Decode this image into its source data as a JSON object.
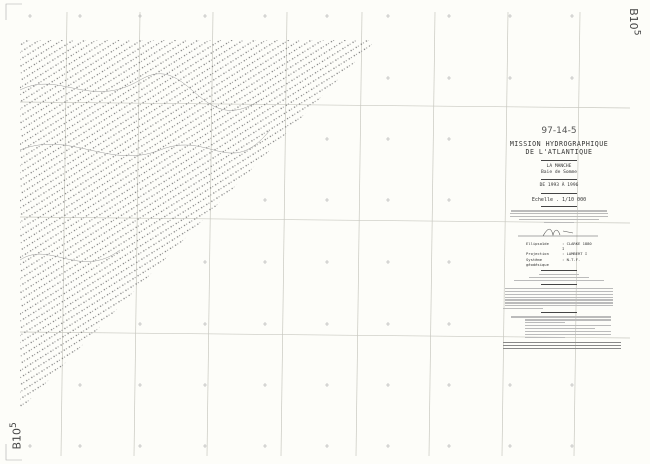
{
  "sheet": {
    "sheet_code": "B10",
    "sheet_code_suffix": "5",
    "background_color": "#fdfdf9",
    "ink_color": "#555555"
  },
  "title_block": {
    "number": "97-14-5",
    "mission_line1": "MISSION HYDROGRAPHIQUE",
    "mission_line2": "DE L'ATLANTIQUE",
    "region": "LA MANCHE",
    "area": "Baie de Somme",
    "dates": "DE 1993 À 1996",
    "scale": "Echelle  .  1/10 000",
    "parameters": [
      {
        "label": "Ellipsoïde",
        "value": ": CLARKE 1880 I"
      },
      {
        "label": "Projection",
        "value": ": LAMBERT I"
      },
      {
        "label": "Système géodésique",
        "value": ": N.T.F."
      }
    ]
  },
  "map_features": {
    "soundings_area": "triangular survey zone with diagonal sounding lines",
    "graticule": "grid lines with cross tick marks"
  }
}
